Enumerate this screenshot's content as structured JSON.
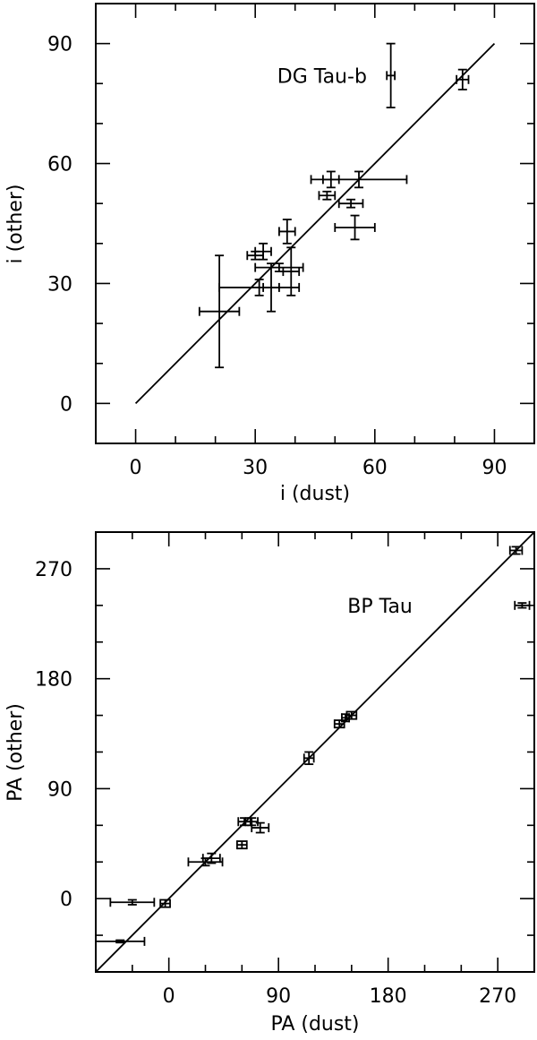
{
  "chart_data": [
    {
      "type": "scatter",
      "title": "",
      "xlabel": "i (dust)",
      "ylabel": "i (other)",
      "xlim": [
        -10,
        100
      ],
      "ylim": [
        -10,
        100
      ],
      "xticks": [
        "0",
        "30",
        "60",
        "90"
      ],
      "yticks": [
        "0",
        "30",
        "60",
        "90"
      ],
      "x_tick_values": [
        0,
        30,
        60,
        90
      ],
      "y_tick_values": [
        0,
        30,
        60,
        90
      ],
      "minor_step": 10,
      "reference_line": {
        "from": [
          0,
          0
        ],
        "to": [
          90,
          90
        ]
      },
      "grid": false,
      "annotations": [
        {
          "text": "DG Tau-b",
          "x": 58,
          "y": 82
        }
      ],
      "points": [
        {
          "x": 64,
          "y": 82,
          "xerr": 1,
          "yerr": 8
        },
        {
          "x": 82,
          "y": 81,
          "xerr": 1.5,
          "yerr": 2.5
        },
        {
          "x": 49,
          "y": 56,
          "xerr": 2,
          "yerr": 2
        },
        {
          "x": 56,
          "y": 56,
          "xerr": 12,
          "yerr": 2
        },
        {
          "x": 48,
          "y": 52,
          "xerr": 2,
          "yerr": 1
        },
        {
          "x": 54,
          "y": 50,
          "xerr": 3,
          "yerr": 1
        },
        {
          "x": 38,
          "y": 43,
          "xerr": 2,
          "yerr": 3
        },
        {
          "x": 55,
          "y": 44,
          "xerr": 5,
          "yerr": 3
        },
        {
          "x": 32,
          "y": 38,
          "xerr": 2,
          "yerr": 2
        },
        {
          "x": 30,
          "y": 37,
          "xerr": 2,
          "yerr": 1
        },
        {
          "x": 36,
          "y": 34,
          "xerr": 6,
          "yerr": 1
        },
        {
          "x": 39,
          "y": 33,
          "xerr": 2,
          "yerr": 6
        },
        {
          "x": 31,
          "y": 29,
          "xerr": 10,
          "yerr": 2
        },
        {
          "x": 34,
          "y": 29,
          "xerr": 2,
          "yerr": 6
        },
        {
          "x": 21,
          "y": 23,
          "xerr": 5,
          "yerr": 14
        }
      ]
    },
    {
      "type": "scatter",
      "title": "",
      "xlabel": "PA (dust)",
      "ylabel": "PA (other)",
      "xlim": [
        -60,
        300
      ],
      "ylim": [
        -60,
        300
      ],
      "xticks": [
        "0",
        "90",
        "180",
        "270"
      ],
      "yticks": [
        "0",
        "90",
        "180",
        "270"
      ],
      "x_tick_values": [
        0,
        90,
        180,
        270
      ],
      "y_tick_values": [
        0,
        90,
        180,
        270
      ],
      "minor_step": 30,
      "reference_line": {
        "from": [
          -60,
          -60
        ],
        "to": [
          300,
          300
        ]
      },
      "grid": false,
      "annotations": [
        {
          "text": "BP Tau",
          "x": 200,
          "y": 240
        }
      ],
      "points": [
        {
          "x": 285,
          "y": 285,
          "xerr": 5,
          "yerr": 3
        },
        {
          "x": 290,
          "y": 240,
          "xerr": 6,
          "yerr": 2
        },
        {
          "x": 150,
          "y": 150,
          "xerr": 4,
          "yerr": 3
        },
        {
          "x": 145,
          "y": 148,
          "xerr": 3,
          "yerr": 3
        },
        {
          "x": 140,
          "y": 143,
          "xerr": 4,
          "yerr": 3
        },
        {
          "x": 115,
          "y": 115,
          "xerr": 4,
          "yerr": 5
        },
        {
          "x": 62,
          "y": 63,
          "xerr": 5,
          "yerr": 3
        },
        {
          "x": 68,
          "y": 63,
          "xerr": 5,
          "yerr": 3
        },
        {
          "x": 75,
          "y": 58,
          "xerr": 7,
          "yerr": 4
        },
        {
          "x": 60,
          "y": 44,
          "xerr": 4,
          "yerr": 3
        },
        {
          "x": 35,
          "y": 33,
          "xerr": 7,
          "yerr": 4
        },
        {
          "x": 30,
          "y": 30,
          "xerr": 14,
          "yerr": 3
        },
        {
          "x": -3,
          "y": -4,
          "xerr": 4,
          "yerr": 3
        },
        {
          "x": -30,
          "y": -3,
          "xerr": 18,
          "yerr": 2
        },
        {
          "x": -40,
          "y": -35,
          "xerr": 20,
          "yerr": 1
        }
      ]
    }
  ]
}
